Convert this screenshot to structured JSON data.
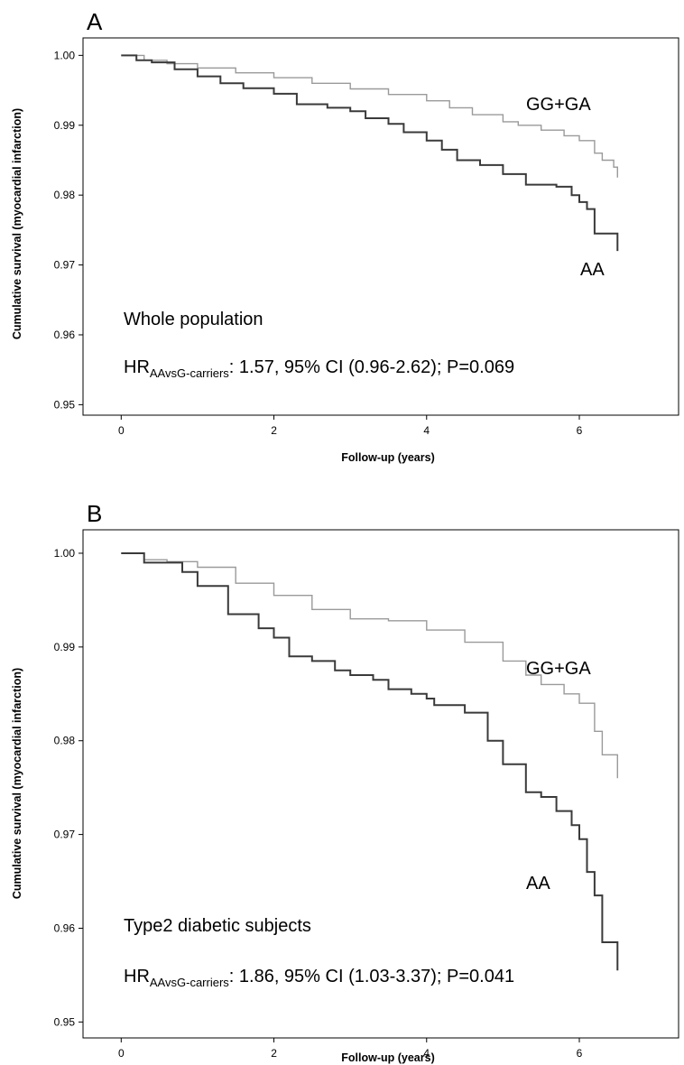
{
  "chart_data": [
    {
      "type": "line",
      "panel_label": "A",
      "xlabel": "Follow-up (years)",
      "ylabel": "Cumulative survival (myocardial infarction)",
      "xlim": [
        -0.5,
        7.3
      ],
      "ylim": [
        0.9485,
        1.0025
      ],
      "x_ticks": [
        0,
        2,
        4,
        6
      ],
      "y_ticks": [
        0.95,
        0.96,
        0.97,
        0.98,
        0.99,
        1.0
      ],
      "y_tick_labels": [
        "0.95",
        "0.96",
        "0.97",
        "0.98",
        "0.99",
        "1.00"
      ],
      "annotations": {
        "subgroup": "Whole population",
        "hr_prefix": "HR",
        "hr_subscript": "AAvsG-carriers",
        "hr_text": ": 1.57, 95% CI (0.96-2.62); P=0.069"
      },
      "series": [
        {
          "name": "GG+GA",
          "color": "#9a9a9a",
          "x": [
            0,
            0.3,
            0.6,
            1.0,
            1.5,
            2.0,
            2.5,
            3.0,
            3.5,
            4.0,
            4.3,
            4.6,
            5.0,
            5.2,
            5.5,
            5.8,
            6.0,
            6.2,
            6.3,
            6.45,
            6.5
          ],
          "y": [
            1.0,
            0.9993,
            0.9988,
            0.9982,
            0.9975,
            0.9968,
            0.996,
            0.9952,
            0.9944,
            0.9935,
            0.9925,
            0.9915,
            0.9905,
            0.99,
            0.9893,
            0.9885,
            0.9878,
            0.986,
            0.985,
            0.984,
            0.9825
          ]
        },
        {
          "name": "AA",
          "color": "#3a3a3a",
          "x": [
            0,
            0.2,
            0.4,
            0.7,
            1.0,
            1.3,
            1.6,
            2.0,
            2.3,
            2.7,
            3.0,
            3.2,
            3.5,
            3.7,
            4.0,
            4.2,
            4.4,
            4.7,
            5.0,
            5.3,
            5.7,
            5.9,
            6.0,
            6.1,
            6.2,
            6.45,
            6.5
          ],
          "y": [
            1.0,
            0.9993,
            0.999,
            0.998,
            0.997,
            0.996,
            0.9953,
            0.9945,
            0.993,
            0.9925,
            0.992,
            0.991,
            0.9902,
            0.989,
            0.9878,
            0.9865,
            0.985,
            0.9843,
            0.983,
            0.9815,
            0.9812,
            0.98,
            0.979,
            0.978,
            0.9745,
            0.9745,
            0.972
          ]
        }
      ]
    },
    {
      "type": "line",
      "panel_label": "B",
      "xlabel": "Follow-up (years)",
      "ylabel": "Cumulative survival (myocardial infarction)",
      "xlim": [
        -0.5,
        7.3
      ],
      "ylim": [
        0.9483,
        1.0025
      ],
      "x_ticks": [
        0,
        2,
        4,
        6
      ],
      "y_ticks": [
        0.95,
        0.96,
        0.97,
        0.98,
        0.99,
        1.0
      ],
      "y_tick_labels": [
        "0.95",
        "0.96",
        "0.97",
        "0.98",
        "0.99",
        "1.00"
      ],
      "annotations": {
        "subgroup": "Type2 diabetic subjects",
        "hr_prefix": "HR",
        "hr_subscript": "AAvsG-carriers",
        "hr_text": ": 1.86, 95% CI (1.03-3.37); P=0.041"
      },
      "series": [
        {
          "name": "GG+GA",
          "color": "#9a9a9a",
          "x": [
            0,
            0.3,
            0.6,
            1.0,
            1.5,
            2.0,
            2.5,
            3.0,
            3.5,
            4.0,
            4.5,
            5.0,
            5.3,
            5.5,
            5.8,
            6.0,
            6.2,
            6.3,
            6.5
          ],
          "y": [
            1.0,
            0.9993,
            0.9991,
            0.9985,
            0.9968,
            0.9955,
            0.994,
            0.993,
            0.9928,
            0.9918,
            0.9905,
            0.9885,
            0.987,
            0.986,
            0.985,
            0.984,
            0.981,
            0.9785,
            0.976
          ]
        },
        {
          "name": "AA",
          "color": "#3a3a3a",
          "x": [
            0,
            0.3,
            0.8,
            1.0,
            1.4,
            1.8,
            2.0,
            2.2,
            2.5,
            2.8,
            3.0,
            3.3,
            3.5,
            3.8,
            4.0,
            4.1,
            4.5,
            4.8,
            5.0,
            5.3,
            5.5,
            5.7,
            5.9,
            6.0,
            6.1,
            6.2,
            6.3,
            6.45,
            6.5
          ],
          "y": [
            1.0,
            0.999,
            0.998,
            0.9965,
            0.9935,
            0.992,
            0.991,
            0.989,
            0.9885,
            0.9875,
            0.987,
            0.9865,
            0.9855,
            0.985,
            0.9845,
            0.9838,
            0.983,
            0.98,
            0.9775,
            0.9745,
            0.974,
            0.9725,
            0.971,
            0.9695,
            0.966,
            0.9635,
            0.9585,
            0.9585,
            0.9555
          ]
        }
      ]
    }
  ]
}
